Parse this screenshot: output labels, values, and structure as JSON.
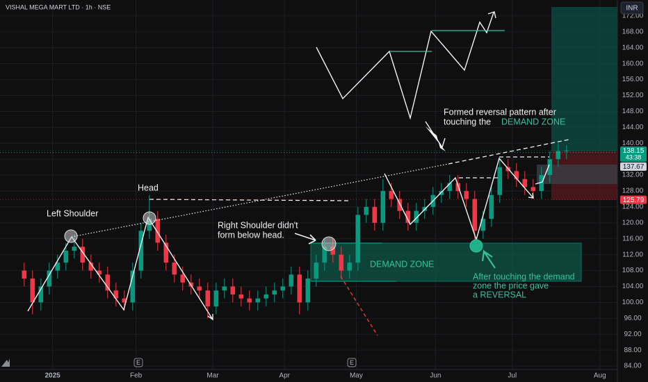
{
  "chart_data": {
    "type": "candlestick",
    "title": "VISHAL MEGA MART LTD · 1h · NSE",
    "currency": "INR",
    "up_color": "#089981",
    "down_color": "#f23645",
    "grid": true,
    "categories": [
      null,
      null,
      null,
      null,
      null,
      null,
      null,
      null,
      null,
      null,
      null,
      null,
      null,
      null,
      null,
      null,
      null,
      null,
      null,
      null,
      null,
      null,
      null,
      null,
      null,
      null,
      null,
      null,
      null,
      null,
      null,
      null,
      null,
      null,
      null,
      null,
      null,
      null,
      null,
      null,
      null,
      null,
      null,
      null,
      null,
      null,
      null,
      null,
      null,
      null,
      null,
      null,
      null,
      null,
      null,
      null,
      null,
      null,
      null,
      null,
      null,
      null,
      null,
      null,
      null,
      null
    ],
    "open": [
      108,
      106,
      100,
      104,
      108,
      110,
      113,
      114,
      110,
      108,
      107,
      103,
      101,
      100,
      108,
      118,
      121,
      115,
      110,
      107,
      105,
      104,
      103,
      99,
      103,
      104,
      102,
      101,
      100,
      101,
      102,
      103,
      104,
      107,
      100,
      106,
      110,
      114,
      112,
      108,
      110,
      122,
      124,
      120,
      128,
      126,
      123,
      120,
      123,
      124,
      127,
      128,
      130,
      128,
      126,
      118,
      121,
      127,
      134,
      133,
      131,
      129,
      128,
      132,
      136,
      138
    ],
    "high": [
      110,
      108,
      106,
      110,
      112,
      115,
      117,
      116,
      112,
      110,
      109,
      105,
      103,
      110,
      120,
      127,
      123,
      117,
      112,
      109,
      107,
      106,
      105,
      105,
      106,
      106,
      104,
      103,
      103,
      104,
      105,
      106,
      109,
      109,
      108,
      112,
      116,
      116,
      114,
      112,
      124,
      126,
      126,
      131,
      130,
      128,
      125,
      125,
      126,
      129,
      130,
      132,
      132,
      130,
      128,
      123,
      129,
      136,
      136,
      135,
      133,
      131,
      134,
      138,
      140,
      139.5
    ],
    "low": [
      104,
      97,
      98,
      102,
      106,
      108,
      111,
      108,
      106,
      105,
      101,
      99,
      98,
      98,
      106,
      116,
      113,
      108,
      105,
      103,
      102,
      101,
      96,
      97,
      101,
      100,
      99,
      98,
      98,
      99,
      100,
      101,
      102,
      97,
      98,
      104,
      108,
      110,
      106,
      106,
      108,
      120,
      118,
      118,
      124,
      121,
      118,
      118,
      121,
      122,
      125,
      126,
      126,
      124,
      115,
      116,
      119,
      125,
      131,
      129,
      127,
      126,
      126,
      130,
      134,
      136
    ],
    "close": [
      106,
      100,
      104,
      108,
      110,
      113,
      114,
      110,
      108,
      107,
      103,
      101,
      100,
      108,
      118,
      121,
      115,
      110,
      107,
      105,
      104,
      103,
      99,
      103,
      104,
      102,
      101,
      100,
      101,
      102,
      103,
      104,
      107,
      100,
      106,
      110,
      114,
      112,
      108,
      110,
      122,
      124,
      120,
      128,
      126,
      123,
      120,
      123,
      124,
      127,
      128,
      130,
      128,
      126,
      118,
      121,
      127,
      134,
      133,
      131,
      129,
      128,
      132,
      136,
      138,
      138.15
    ],
    "xlim": [
      -2.9,
      71.1
    ],
    "xticks": [
      {
        "value": 3.4,
        "label": "2025"
      },
      {
        "value": 13.4,
        "label": "Feb"
      },
      {
        "value": 22.6,
        "label": "Mar"
      },
      {
        "value": 31.2,
        "label": "Apr"
      },
      {
        "value": 39.8,
        "label": "May"
      },
      {
        "value": 49.3,
        "label": "Jun"
      },
      {
        "value": 58.5,
        "label": "Jul"
      },
      {
        "value": 69.0,
        "label": "Aug"
      }
    ],
    "ylim": [
      80,
      176
    ],
    "yticks": [
      {
        "value": 84,
        "label": "84.00"
      },
      {
        "value": 88,
        "label": "88.00"
      },
      {
        "value": 92,
        "label": "92.00"
      },
      {
        "value": 96,
        "label": "96.00"
      },
      {
        "value": 100,
        "label": "100.00"
      },
      {
        "value": 104,
        "label": "104.00"
      },
      {
        "value": 108,
        "label": "108.00"
      },
      {
        "value": 112,
        "label": "112.00"
      },
      {
        "value": 116,
        "label": "116.00"
      },
      {
        "value": 120,
        "label": "120.00"
      },
      {
        "value": 124,
        "label": "124.00"
      },
      {
        "value": 128,
        "label": "128.00"
      },
      {
        "value": 132,
        "label": "132.00"
      },
      {
        "value": 136,
        "label": "136.00"
      },
      {
        "value": 140,
        "label": "140.00"
      },
      {
        "value": 144,
        "label": "144.00"
      },
      {
        "value": 148,
        "label": "148.00"
      },
      {
        "value": 152,
        "label": "152.00"
      },
      {
        "value": 156,
        "label": "156.00"
      },
      {
        "value": 160,
        "label": "160.00"
      },
      {
        "value": 164,
        "label": "164.00"
      },
      {
        "value": 168,
        "label": "168.00"
      },
      {
        "value": 172,
        "label": "172.00"
      }
    ],
    "price_tags": [
      {
        "value": 138.15,
        "label": "138.15",
        "color": "#089981",
        "sub": "43:38"
      },
      {
        "value": 137.67,
        "label": "137.67",
        "color": "#d1d4dc"
      },
      {
        "value": 125.79,
        "label": "125.79",
        "color": "#f23645"
      }
    ],
    "annotations": {
      "left_shoulder": "Left Shoulder",
      "head": "Head",
      "right_shoulder": [
        "Right Shoulder didn't",
        "form below head."
      ],
      "demand_zone": "DEMAND ZONE",
      "reversal_note": [
        "Formed reversal pattern after",
        "touching the",
        "DEMAND ZONE"
      ],
      "after_touch": [
        "After touching the demand",
        "zone the price gave",
        "a REVERSAL"
      ],
      "earnings_marker": "E"
    }
  }
}
